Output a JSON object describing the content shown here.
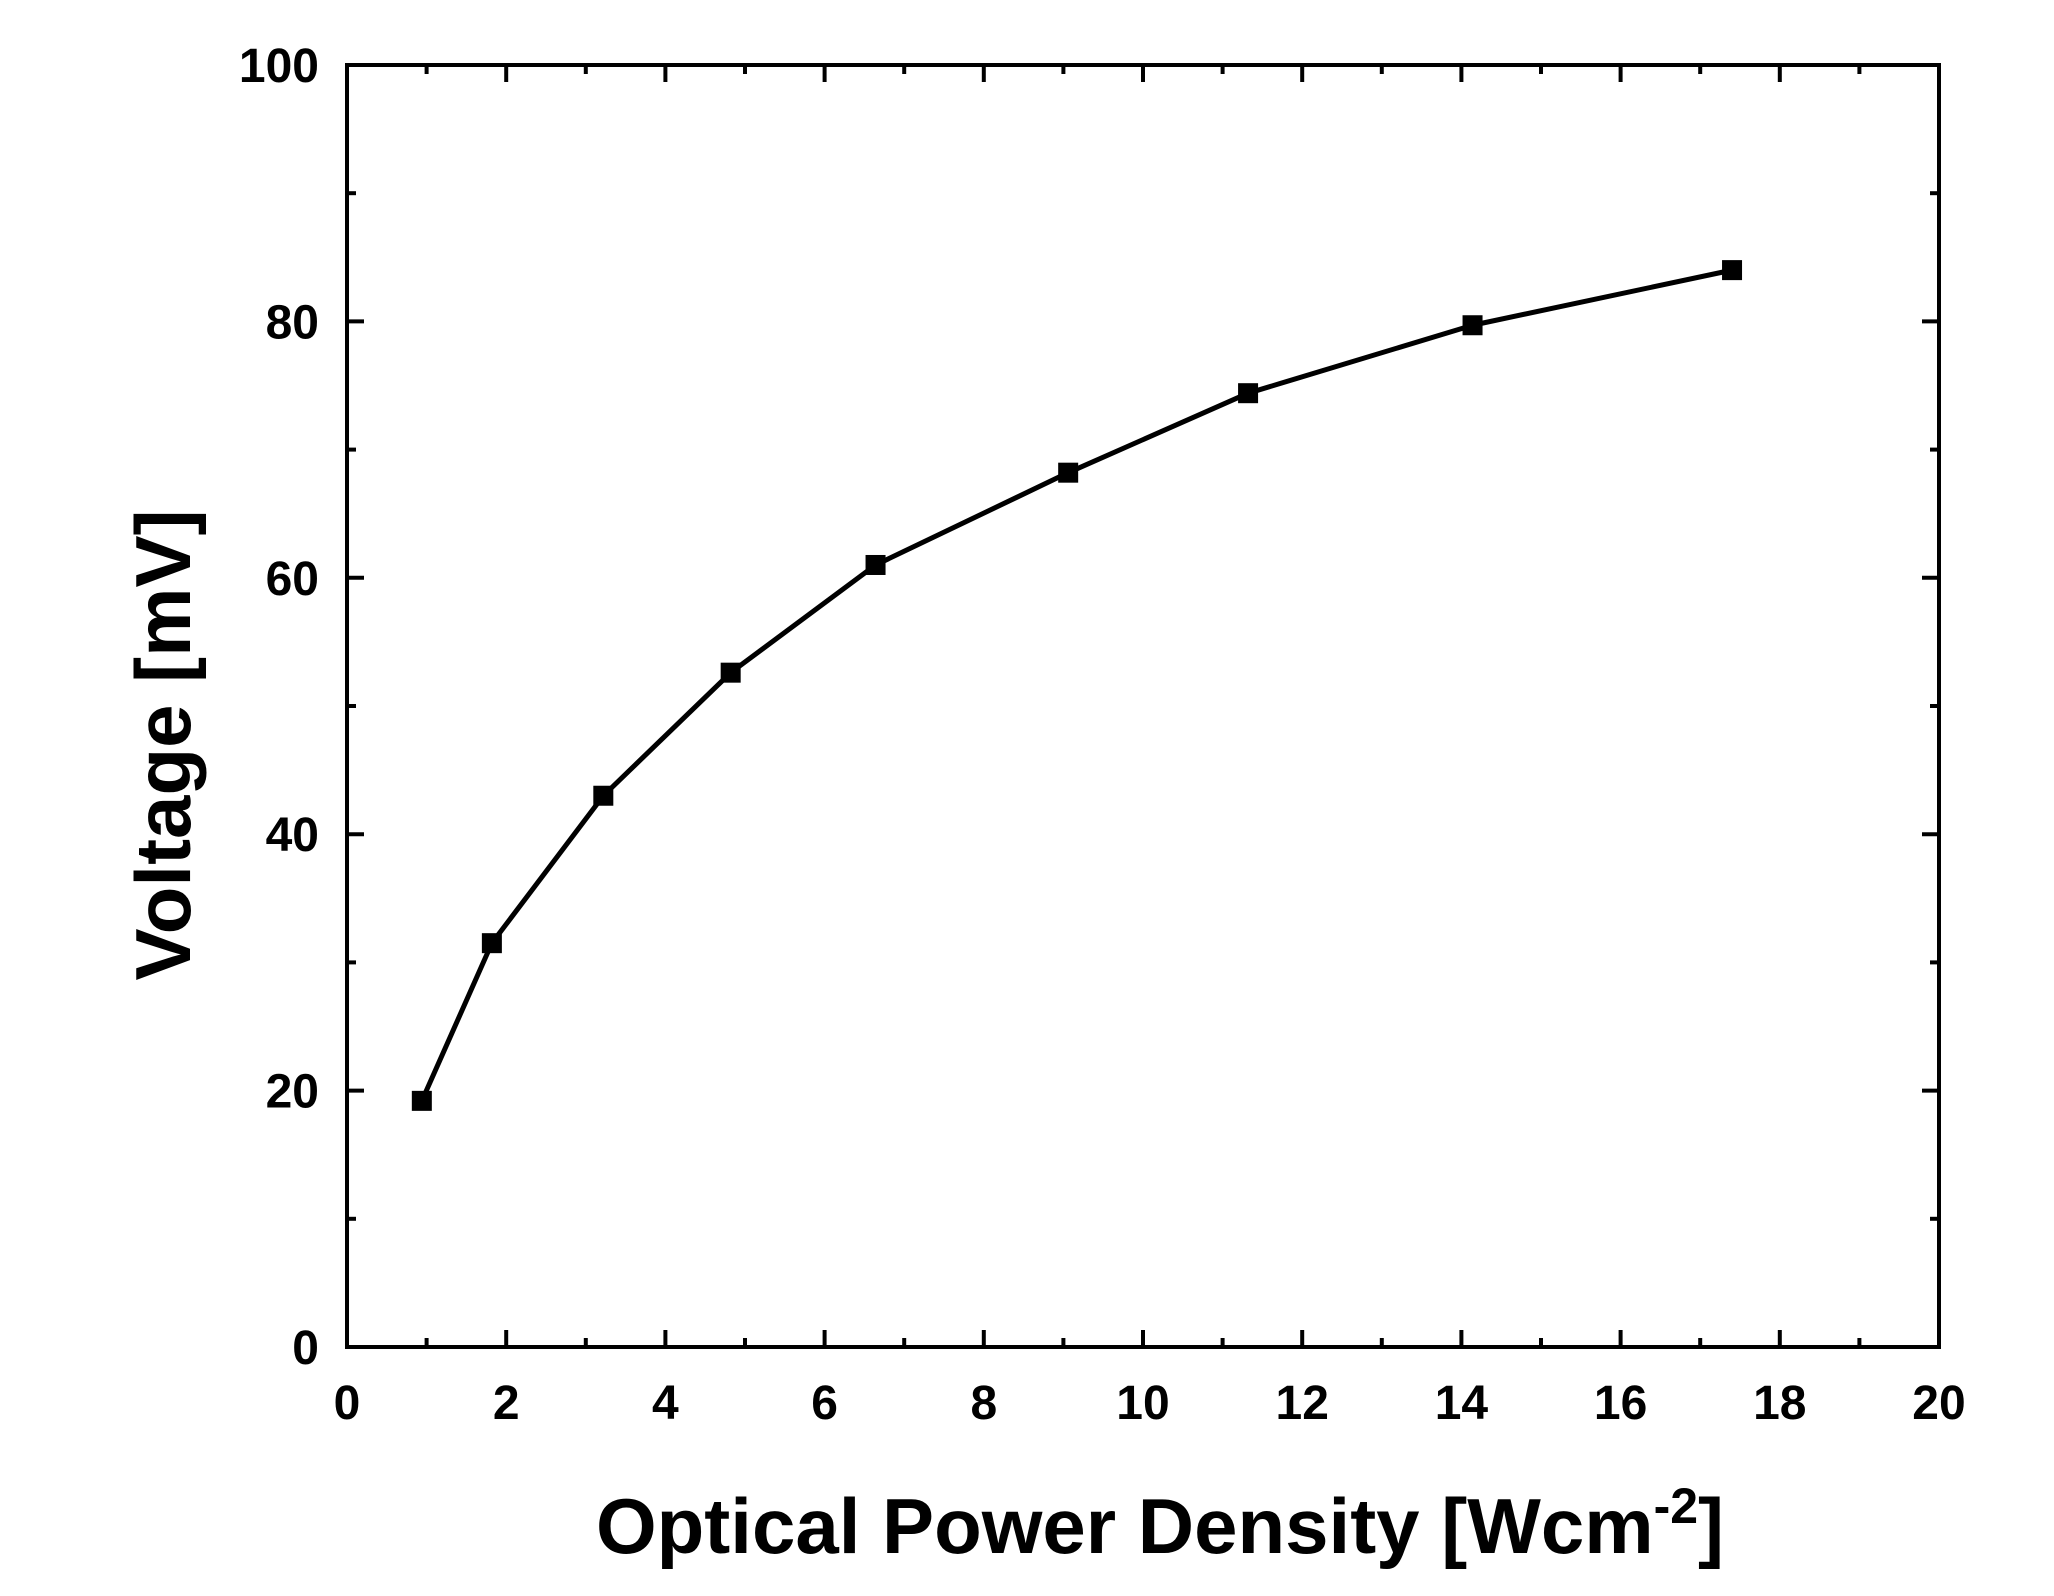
{
  "chart_data": {
    "type": "line",
    "title": "",
    "xlabel_main": "Optical Power Density [Wcm",
    "xlabel_sup": "-2",
    "xlabel_end": "]",
    "ylabel": "Voltage [mV]",
    "xlim": [
      0,
      20
    ],
    "ylim": [
      0,
      100
    ],
    "x_ticks": [
      "0",
      "2",
      "4",
      "6",
      "8",
      "10",
      "12",
      "14",
      "16",
      "18",
      "20"
    ],
    "y_ticks": [
      "0",
      "20",
      "40",
      "60",
      "80",
      "100"
    ],
    "grid": false,
    "legend": "none",
    "series": [
      {
        "marker": "square",
        "color": "#000000",
        "x": [
          0.94,
          1.82,
          3.22,
          4.82,
          6.64,
          9.06,
          11.32,
          14.14,
          17.4
        ],
        "y": [
          19.2,
          31.5,
          43.0,
          52.6,
          61.0,
          68.2,
          74.4,
          79.7,
          84.0
        ]
      }
    ]
  }
}
